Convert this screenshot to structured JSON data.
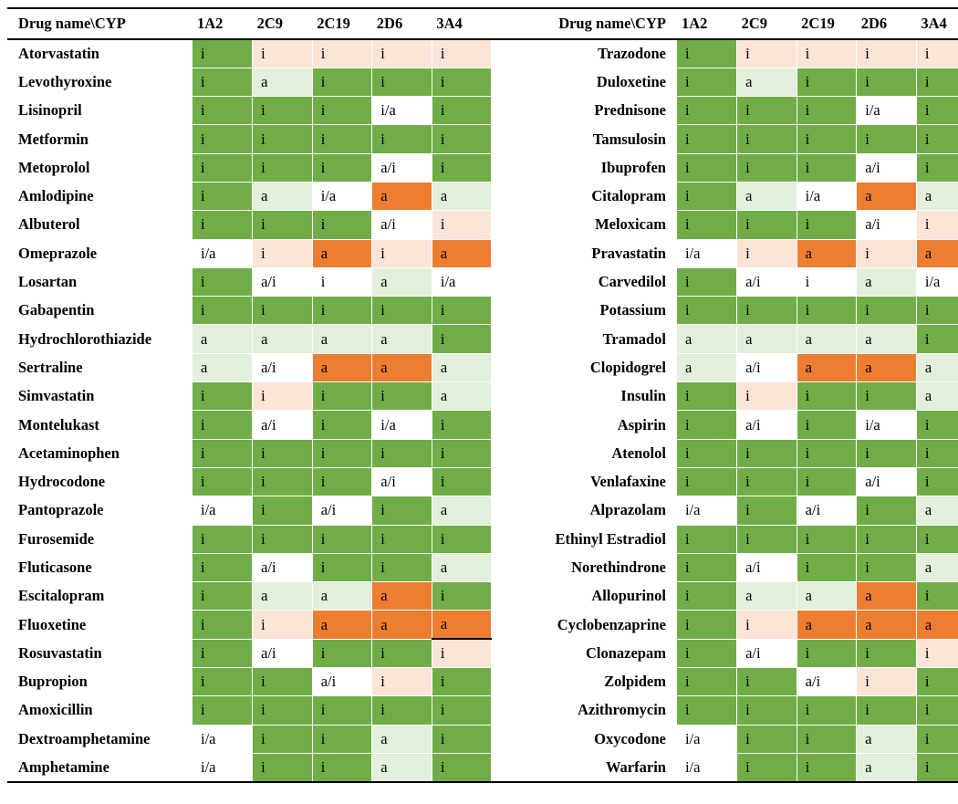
{
  "table": {
    "headers": [
      "Drug name\\CYP",
      "1A2",
      "2C9",
      "2C19",
      "2D6",
      "3A4",
      "Drug name\\CYP",
      "1A2",
      "2C9",
      "2C19",
      "2D6",
      "3A4"
    ],
    "legend_colors": {
      "dark": "#70ad47",
      "light": "#e2efda",
      "white": "#ffffff",
      "pink": "#fce4d6",
      "orange": "#ed7d31"
    },
    "rows": [
      {
        "left": {
          "drug": "Atorvastatin",
          "vals": [
            "i",
            "i",
            "i",
            "i",
            "i"
          ],
          "shades": [
            "dark",
            "pink",
            "pink",
            "pink",
            "pink"
          ]
        },
        "right": {
          "drug": "Trazodone",
          "vals": [
            "i",
            "i",
            "i",
            "i",
            "i"
          ],
          "shades": [
            "dark",
            "pink",
            "pink",
            "pink",
            "pink"
          ]
        }
      },
      {
        "left": {
          "drug": "Levothyroxine",
          "vals": [
            "i",
            "a",
            "i",
            "i",
            "i"
          ],
          "shades": [
            "dark",
            "light",
            "dark",
            "dark",
            "dark"
          ]
        },
        "right": {
          "drug": "Duloxetine",
          "vals": [
            "i",
            "a",
            "i",
            "i",
            "i"
          ],
          "shades": [
            "dark",
            "light",
            "dark",
            "dark",
            "dark"
          ]
        }
      },
      {
        "left": {
          "drug": "Lisinopril",
          "vals": [
            "i",
            "i",
            "i",
            "i/a",
            "i"
          ],
          "shades": [
            "dark",
            "dark",
            "dark",
            "white",
            "dark"
          ]
        },
        "right": {
          "drug": "Prednisone",
          "vals": [
            "i",
            "i",
            "i",
            "i/a",
            "i"
          ],
          "shades": [
            "dark",
            "dark",
            "dark",
            "white",
            "dark"
          ]
        }
      },
      {
        "left": {
          "drug": "Metformin",
          "vals": [
            "i",
            "i",
            "i",
            "i",
            "i"
          ],
          "shades": [
            "dark",
            "dark",
            "dark",
            "dark",
            "dark"
          ]
        },
        "right": {
          "drug": "Tamsulosin",
          "vals": [
            "i",
            "i",
            "i",
            "i",
            "i"
          ],
          "shades": [
            "dark",
            "dark",
            "dark",
            "dark",
            "dark"
          ]
        }
      },
      {
        "left": {
          "drug": "Metoprolol",
          "vals": [
            "i",
            "i",
            "i",
            "a/i",
            "i"
          ],
          "shades": [
            "dark",
            "dark",
            "dark",
            "white",
            "dark"
          ]
        },
        "right": {
          "drug": "Ibuprofen",
          "vals": [
            "i",
            "i",
            "i",
            "a/i",
            "i"
          ],
          "shades": [
            "dark",
            "dark",
            "dark",
            "white",
            "dark"
          ]
        }
      },
      {
        "left": {
          "drug": "Amlodipine",
          "vals": [
            "i",
            "a",
            "i/a",
            "a",
            "a"
          ],
          "shades": [
            "dark",
            "light",
            "white",
            "orange",
            "light"
          ]
        },
        "right": {
          "drug": "Citalopram",
          "vals": [
            "i",
            "a",
            "i/a",
            "a",
            "a"
          ],
          "shades": [
            "dark",
            "light",
            "white",
            "orange",
            "light"
          ]
        }
      },
      {
        "left": {
          "drug": "Albuterol",
          "vals": [
            "i",
            "i",
            "i",
            "a/i",
            "i"
          ],
          "shades": [
            "dark",
            "dark",
            "dark",
            "white",
            "pink"
          ]
        },
        "right": {
          "drug": "Meloxicam",
          "vals": [
            "i",
            "i",
            "i",
            "a/i",
            "i"
          ],
          "shades": [
            "dark",
            "dark",
            "dark",
            "white",
            "pink"
          ]
        }
      },
      {
        "left": {
          "drug": "Omeprazole",
          "vals": [
            "i/a",
            "i",
            "a",
            "i",
            "a"
          ],
          "shades": [
            "white",
            "pink",
            "orange",
            "pink",
            "orange"
          ]
        },
        "right": {
          "drug": "Pravastatin",
          "vals": [
            "i/a",
            "i",
            "a",
            "i",
            "a"
          ],
          "shades": [
            "white",
            "pink",
            "orange",
            "pink",
            "orange"
          ]
        }
      },
      {
        "left": {
          "drug": "Losartan",
          "vals": [
            "i",
            "a/i",
            "i",
            "a",
            "i/a"
          ],
          "shades": [
            "dark",
            "white",
            "white",
            "light",
            "white"
          ]
        },
        "right": {
          "drug": "Carvedilol",
          "vals": [
            "i",
            "a/i",
            "i",
            "a",
            "i/a"
          ],
          "shades": [
            "dark",
            "white",
            "white",
            "light",
            "white"
          ]
        }
      },
      {
        "left": {
          "drug": "Gabapentin",
          "vals": [
            "i",
            "i",
            "i",
            "i",
            "i"
          ],
          "shades": [
            "dark",
            "dark",
            "dark",
            "dark",
            "dark"
          ]
        },
        "right": {
          "drug": "Potassium",
          "vals": [
            "i",
            "i",
            "i",
            "i",
            "i"
          ],
          "shades": [
            "dark",
            "dark",
            "dark",
            "dark",
            "dark"
          ]
        }
      },
      {
        "left": {
          "drug": "Hydrochlorothiazide",
          "vals": [
            "a",
            "a",
            "a",
            "a",
            "i"
          ],
          "shades": [
            "light",
            "light",
            "light",
            "light",
            "dark"
          ]
        },
        "right": {
          "drug": "Tramadol",
          "vals": [
            "a",
            "a",
            "a",
            "a",
            "i"
          ],
          "shades": [
            "light",
            "light",
            "light",
            "light",
            "dark"
          ]
        }
      },
      {
        "left": {
          "drug": "Sertraline",
          "vals": [
            "a",
            "a/i",
            "a",
            "a",
            "a"
          ],
          "shades": [
            "light",
            "white",
            "orange",
            "orange",
            "light"
          ]
        },
        "right": {
          "drug": "Clopidogrel",
          "vals": [
            "a",
            "a/i",
            "a",
            "a",
            "a"
          ],
          "shades": [
            "light",
            "white",
            "orange",
            "orange",
            "light"
          ]
        }
      },
      {
        "left": {
          "drug": "Simvastatin",
          "vals": [
            "i",
            "i",
            "i",
            "i",
            "a"
          ],
          "shades": [
            "dark",
            "pink",
            "dark",
            "dark",
            "light"
          ]
        },
        "right": {
          "drug": "Insulin",
          "vals": [
            "i",
            "i",
            "i",
            "i",
            "a"
          ],
          "shades": [
            "dark",
            "pink",
            "dark",
            "dark",
            "light"
          ]
        }
      },
      {
        "left": {
          "drug": "Montelukast",
          "vals": [
            "i",
            "a/i",
            "i",
            "i/a",
            "i"
          ],
          "shades": [
            "dark",
            "white",
            "dark",
            "white",
            "dark"
          ]
        },
        "right": {
          "drug": "Aspirin",
          "vals": [
            "i",
            "a/i",
            "i",
            "i/a",
            "i"
          ],
          "shades": [
            "dark",
            "white",
            "dark",
            "white",
            "dark"
          ]
        }
      },
      {
        "left": {
          "drug": "Acetaminophen",
          "vals": [
            "i",
            "i",
            "i",
            "i",
            "i"
          ],
          "shades": [
            "dark",
            "dark",
            "dark",
            "dark",
            "dark"
          ]
        },
        "right": {
          "drug": "Atenolol",
          "vals": [
            "i",
            "i",
            "i",
            "i",
            "i"
          ],
          "shades": [
            "dark",
            "dark",
            "dark",
            "dark",
            "dark"
          ]
        }
      },
      {
        "left": {
          "drug": "Hydrocodone",
          "vals": [
            "i",
            "i",
            "i",
            "a/i",
            "i"
          ],
          "shades": [
            "dark",
            "dark",
            "dark",
            "white",
            "dark"
          ]
        },
        "right": {
          "drug": "Venlafaxine",
          "vals": [
            "i",
            "i",
            "i",
            "a/i",
            "i"
          ],
          "shades": [
            "dark",
            "dark",
            "dark",
            "white",
            "dark"
          ]
        }
      },
      {
        "left": {
          "drug": "Pantoprazole",
          "vals": [
            "i/a",
            "i",
            "a/i",
            "i",
            "a"
          ],
          "shades": [
            "white",
            "dark",
            "white",
            "dark",
            "light"
          ]
        },
        "right": {
          "drug": "Alprazolam",
          "vals": [
            "i/a",
            "i",
            "a/i",
            "i",
            "a"
          ],
          "shades": [
            "white",
            "dark",
            "white",
            "dark",
            "light"
          ]
        }
      },
      {
        "left": {
          "drug": "Furosemide",
          "vals": [
            "i",
            "i",
            "i",
            "i",
            "i"
          ],
          "shades": [
            "dark",
            "dark",
            "dark",
            "dark",
            "dark"
          ]
        },
        "right": {
          "drug": "Ethinyl Estradiol",
          "vals": [
            "i",
            "i",
            "i",
            "i",
            "i"
          ],
          "shades": [
            "dark",
            "dark",
            "dark",
            "dark",
            "dark"
          ]
        }
      },
      {
        "left": {
          "drug": "Fluticasone",
          "vals": [
            "i",
            "a/i",
            "i",
            "i",
            "a"
          ],
          "shades": [
            "dark",
            "white",
            "dark",
            "dark",
            "light"
          ]
        },
        "right": {
          "drug": "Norethindrone",
          "vals": [
            "i",
            "a/i",
            "i",
            "i",
            "a"
          ],
          "shades": [
            "dark",
            "white",
            "dark",
            "dark",
            "light"
          ]
        }
      },
      {
        "left": {
          "drug": "Escitalopram",
          "vals": [
            "i",
            "a",
            "a",
            "a",
            "i"
          ],
          "shades": [
            "dark",
            "light",
            "light",
            "orange",
            "dark"
          ]
        },
        "right": {
          "drug": "Allopurinol",
          "vals": [
            "i",
            "a",
            "a",
            "a",
            "i"
          ],
          "shades": [
            "dark",
            "light",
            "light",
            "orange",
            "dark"
          ]
        }
      },
      {
        "left": {
          "drug": "Fluoxetine",
          "vals": [
            "i",
            "i",
            "a",
            "a",
            "a"
          ],
          "shades": [
            "dark",
            "pink",
            "orange",
            "orange",
            "orange"
          ]
        },
        "right": {
          "drug": "Cyclobenzaprine",
          "vals": [
            "i",
            "i",
            "a",
            "a",
            "a"
          ],
          "shades": [
            "dark",
            "pink",
            "orange",
            "orange",
            "orange"
          ]
        }
      },
      {
        "left": {
          "drug": "Rosuvastatin",
          "vals": [
            "i",
            "a/i",
            "i",
            "i",
            "i"
          ],
          "shades": [
            "dark",
            "white",
            "dark",
            "dark",
            "pink"
          ]
        },
        "right": {
          "drug": "Clonazepam",
          "vals": [
            "i",
            "a/i",
            "i",
            "i",
            "i"
          ],
          "shades": [
            "dark",
            "white",
            "dark",
            "dark",
            "pink"
          ]
        }
      },
      {
        "left": {
          "drug": "Bupropion",
          "vals": [
            "i",
            "i",
            "a/i",
            "i",
            "i"
          ],
          "shades": [
            "dark",
            "dark",
            "white",
            "pink",
            "dark"
          ]
        },
        "right": {
          "drug": "Zolpidem",
          "vals": [
            "i",
            "i",
            "a/i",
            "i",
            "i"
          ],
          "shades": [
            "dark",
            "dark",
            "white",
            "pink",
            "dark"
          ]
        }
      },
      {
        "left": {
          "drug": "Amoxicillin",
          "vals": [
            "i",
            "i",
            "i",
            "i",
            "i"
          ],
          "shades": [
            "dark",
            "dark",
            "dark",
            "dark",
            "dark"
          ]
        },
        "right": {
          "drug": "Azithromycin",
          "vals": [
            "i",
            "i",
            "i",
            "i",
            "i"
          ],
          "shades": [
            "dark",
            "dark",
            "dark",
            "dark",
            "dark"
          ]
        }
      },
      {
        "left": {
          "drug": "Dextroamphetamine",
          "vals": [
            "i/a",
            "i",
            "i",
            "a",
            "i"
          ],
          "shades": [
            "white",
            "dark",
            "dark",
            "light",
            "dark"
          ]
        },
        "right": {
          "drug": "Oxycodone",
          "vals": [
            "i/a",
            "i",
            "i",
            "a",
            "i"
          ],
          "shades": [
            "white",
            "dark",
            "dark",
            "light",
            "dark"
          ]
        }
      },
      {
        "left": {
          "drug": "Amphetamine",
          "vals": [
            "i/a",
            "i",
            "i",
            "a",
            "i"
          ],
          "shades": [
            "white",
            "dark",
            "dark",
            "light",
            "dark"
          ]
        },
        "right": {
          "drug": "Warfarin",
          "vals": [
            "i/a",
            "i",
            "i",
            "a",
            "i"
          ],
          "shades": [
            "white",
            "dark",
            "dark",
            "light",
            "dark"
          ]
        }
      }
    ]
  }
}
